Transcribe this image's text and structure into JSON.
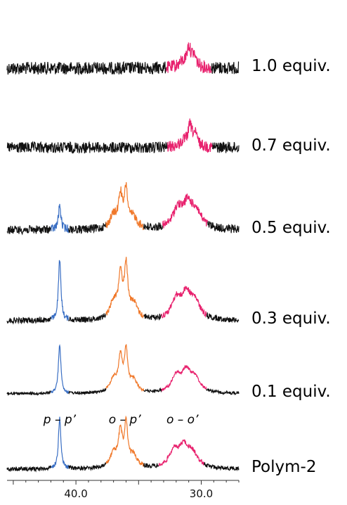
{
  "chart_data": {
    "type": "line",
    "title": "",
    "xlabel": "",
    "ylabel": "",
    "xlim": [
      45.5,
      27.0
    ],
    "x_reversed": true,
    "x_ticks": [
      {
        "value": 40.0,
        "label": "40.0"
      },
      {
        "value": 30.0,
        "label": "30.0"
      }
    ],
    "peak_labels": [
      {
        "id": "pp",
        "text": "p – p’",
        "x": 41.3
      },
      {
        "id": "op",
        "text": "o – p’",
        "x": 36.1
      },
      {
        "id": "oo",
        "text": "o – o’",
        "x": 31.5
      }
    ],
    "colors": {
      "baseline": "#111111",
      "p_p": "#3a6fc4",
      "o_p": "#f0782a",
      "o_o": "#e8226e"
    },
    "series": [
      {
        "name": "1.0 equiv.",
        "noise": 9.0,
        "peaks": [
          {
            "region": "o_o",
            "center": 31.0,
            "height": 0.55,
            "shape": "sharp"
          }
        ]
      },
      {
        "name": "0.7 equiv.",
        "noise": 8.0,
        "peaks": [
          {
            "region": "o_o",
            "center": 30.9,
            "height": 0.6,
            "shape": "sharp"
          }
        ]
      },
      {
        "name": "0.5 equiv.",
        "noise": 6.0,
        "peaks": [
          {
            "region": "p_p",
            "center": 41.3,
            "height": 0.45,
            "shape": "single"
          },
          {
            "region": "o_p",
            "center": 36.1,
            "height": 0.7,
            "shape": "multiplet"
          },
          {
            "region": "o_o",
            "center": 31.3,
            "height": 0.5,
            "shape": "broad"
          }
        ]
      },
      {
        "name": "0.3 equiv.",
        "noise": 4.0,
        "peaks": [
          {
            "region": "p_p",
            "center": 41.3,
            "height": 1.0,
            "shape": "single"
          },
          {
            "region": "o_p",
            "center": 36.1,
            "height": 0.85,
            "shape": "multiplet"
          },
          {
            "region": "o_o",
            "center": 31.4,
            "height": 0.45,
            "shape": "broad"
          }
        ]
      },
      {
        "name": "0.1 equiv.",
        "noise": 2.0,
        "peaks": [
          {
            "region": "p_p",
            "center": 41.3,
            "height": 1.0,
            "shape": "single"
          },
          {
            "region": "o_p",
            "center": 36.1,
            "height": 0.8,
            "shape": "multiplet"
          },
          {
            "region": "o_o",
            "center": 31.4,
            "height": 0.45,
            "shape": "broad"
          }
        ]
      },
      {
        "name": "Polym-2",
        "noise": 3.0,
        "peaks": [
          {
            "region": "p_p",
            "center": 41.3,
            "height": 1.0,
            "shape": "single"
          },
          {
            "region": "o_p",
            "center": 36.1,
            "height": 0.8,
            "shape": "multiplet"
          },
          {
            "region": "o_o",
            "center": 31.6,
            "height": 0.45,
            "shape": "broad"
          }
        ]
      }
    ]
  }
}
